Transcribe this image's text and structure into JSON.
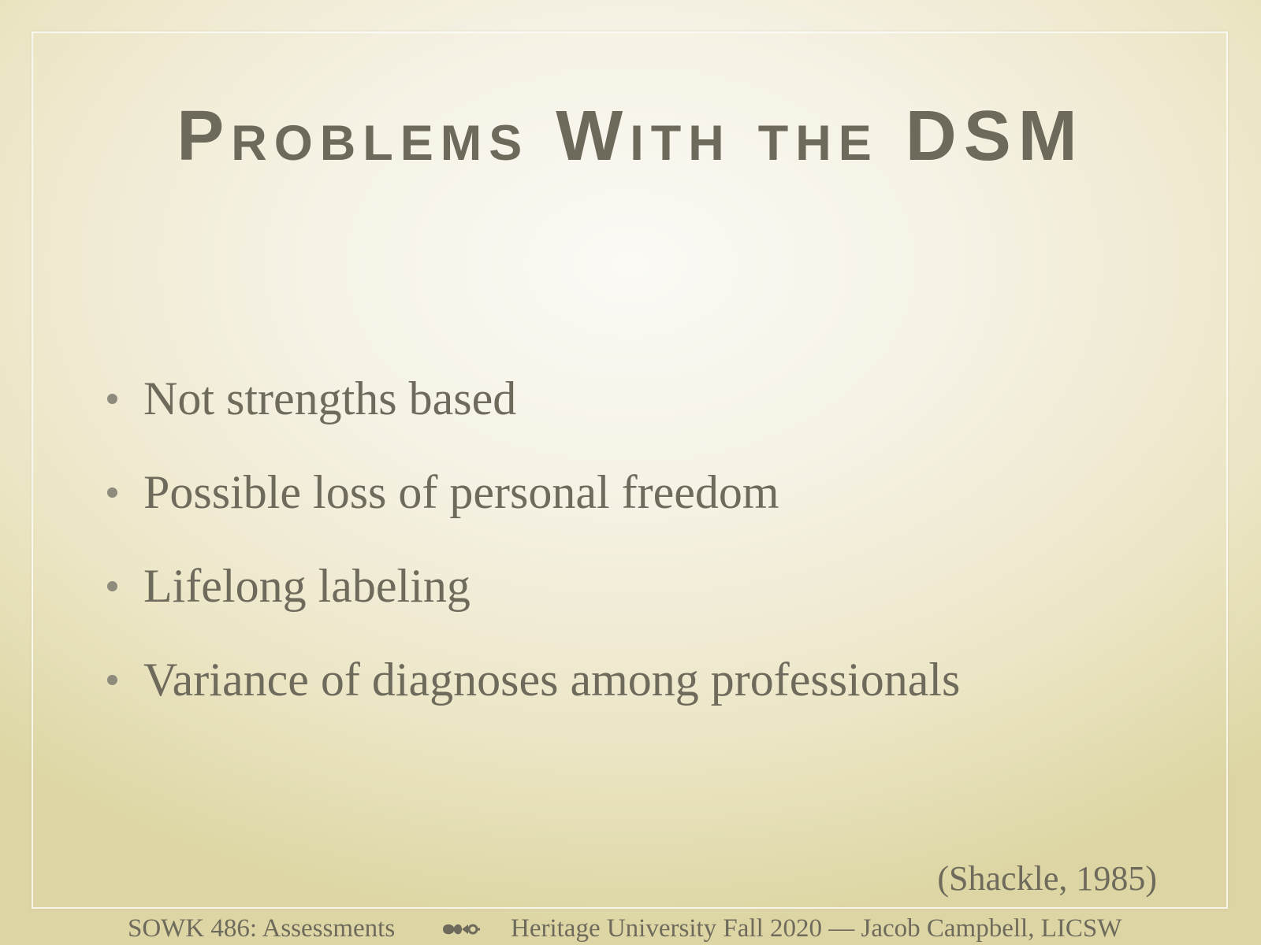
{
  "slide": {
    "title": "Problems With the DSM",
    "bullets": [
      "Not strengths based",
      "Possible loss of personal freedom",
      "Lifelong labeling",
      "Variance of diagnoses among professionals"
    ],
    "citation": "(Shackle, 1985)"
  },
  "footer": {
    "course": "SOWK 486: Assessments",
    "ornament_icon": "fleuron-icon",
    "credit": "Heritage University Fall 2020 — Jacob Campbell, LICSW"
  },
  "colors": {
    "text": "#6e6a5c",
    "background_center": "#fbfaf5",
    "background_edge": "#ddd6a4"
  }
}
